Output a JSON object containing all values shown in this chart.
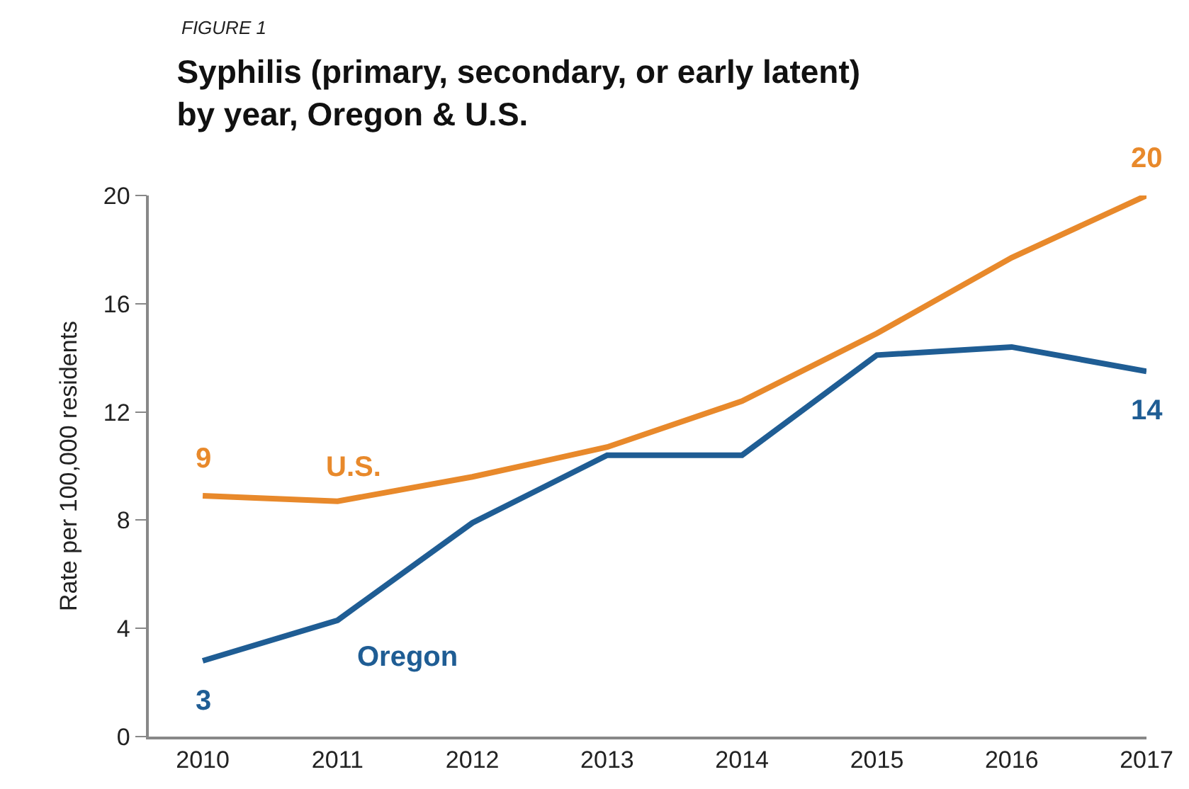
{
  "chart_data": {
    "type": "line",
    "title": "Syphilis (primary, secondary, or early latent)\nby year, Oregon & U.S.",
    "annotations": [
      "FIGURE 1"
    ],
    "ylabel": "Rate per 100,000 residents",
    "x": [
      2010,
      2011,
      2012,
      2013,
      2014,
      2015,
      2016,
      2017
    ],
    "xlim": [
      2009.6,
      2017
    ],
    "xticks": [
      2010,
      2011,
      2012,
      2013,
      2014,
      2015,
      2016,
      2017
    ],
    "ylim": [
      0,
      20
    ],
    "yticks": [
      0,
      4,
      8,
      12,
      16,
      20
    ],
    "grid": false,
    "legend": false,
    "marker": "none",
    "line_style": "solid",
    "series": [
      {
        "name": "U.S.",
        "color": "#e8892b",
        "values": [
          8.9,
          8.7,
          9.6,
          10.7,
          12.4,
          14.9,
          17.7,
          20
        ],
        "value_labels": [
          "9",
          null,
          null,
          null,
          null,
          null,
          null,
          "20"
        ]
      },
      {
        "name": "Oregon",
        "color": "#1f5d94",
        "values": [
          2.8,
          4.3,
          7.9,
          10.4,
          10.4,
          14.1,
          14.4,
          13.5
        ],
        "value_labels": [
          "3",
          null,
          null,
          null,
          null,
          null,
          null,
          "14"
        ]
      }
    ]
  }
}
